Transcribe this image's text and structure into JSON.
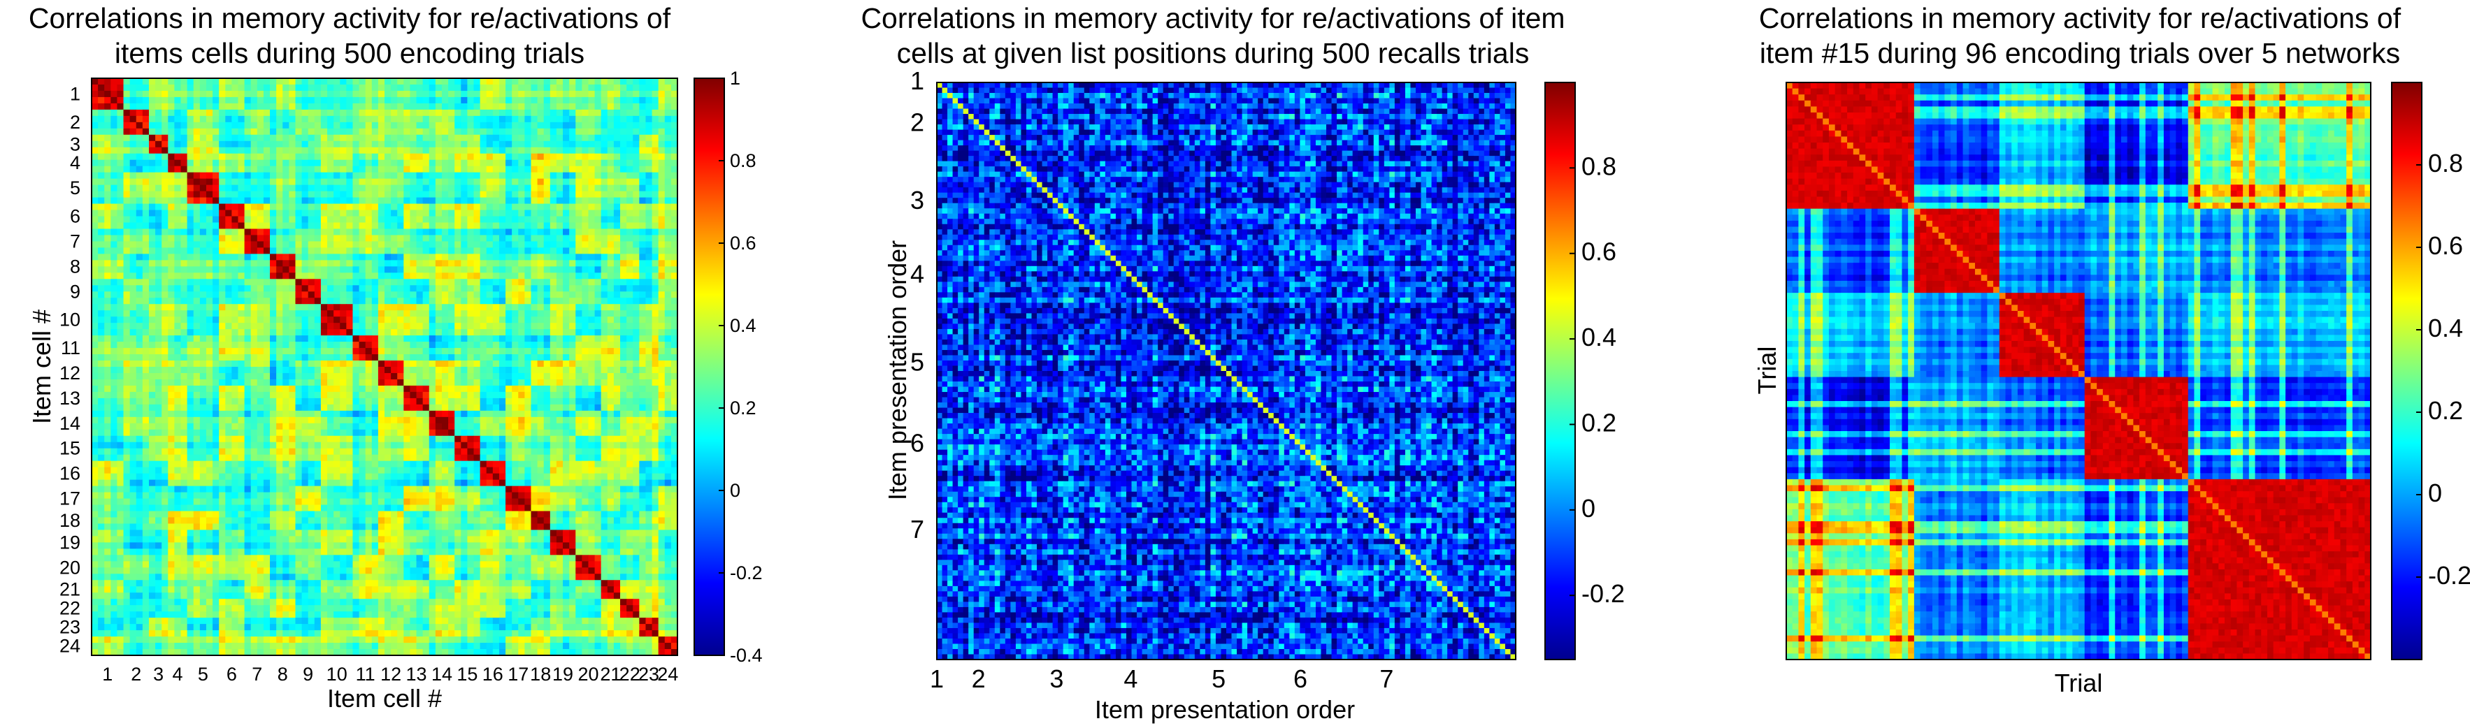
{
  "chart_data": [
    {
      "type": "heatmap",
      "title": [
        "Correlations in memory activity for re/activations of",
        "items cells during 500 encoding trials"
      ],
      "xlabel": "Item cell #",
      "ylabel": "Item cell #",
      "xticks": [
        "1",
        "2",
        "3",
        "4",
        "5",
        "6",
        "7",
        "8",
        "9",
        "10",
        "11",
        "12",
        "13",
        "14",
        "15",
        "16",
        "17",
        "18",
        "19",
        "20",
        "21",
        "22",
        "23",
        "24"
      ],
      "yticks": [
        "1",
        "2",
        "3",
        "4",
        "5",
        "6",
        "7",
        "8",
        "9",
        "10",
        "11",
        "12",
        "13",
        "14",
        "15",
        "16",
        "17",
        "18",
        "19",
        "20",
        "21",
        "22",
        "23",
        "24"
      ],
      "colorbar": {
        "min": -0.4,
        "max": 1,
        "ticks": [
          "1",
          "0.8",
          "0.6",
          "0.4",
          "0.2",
          "0",
          "-0.2",
          "-0.4"
        ]
      },
      "colormap": "jet",
      "description_values": {
        "diagonal_value": 1,
        "background_range": [
          -0.4,
          0.5
        ]
      }
    },
    {
      "type": "heatmap",
      "title": [
        "Correlations in memory activity for re/activations of item",
        "cells at given list positions during 500 recalls trials"
      ],
      "xlabel": "Item presentation order",
      "ylabel": "Item presentation order",
      "xticks": [
        "1",
        "2",
        "3",
        "4",
        "5",
        "6",
        "7"
      ],
      "yticks": [
        "1",
        "2",
        "3",
        "4",
        "5",
        "6",
        "7"
      ],
      "colorbar": {
        "min": -0.35,
        "max": 1,
        "ticks": [
          "0.8",
          "0.6",
          "0.4",
          "0.2",
          "0",
          "-0.2"
        ]
      },
      "colormap": "jet",
      "description_values": {
        "background_range": [
          -0.35,
          0.3
        ]
      }
    },
    {
      "type": "heatmap",
      "title": [
        "Correlations in memory activity for re/activations of",
        "item #15 during 96 encoding trials over 5 networks"
      ],
      "xlabel": "Trial",
      "ylabel": "Trial",
      "colorbar": {
        "min": -0.4,
        "max": 1,
        "ticks": [
          "0.8",
          "0.6",
          "0.4",
          "0.2",
          "0",
          "-0.2"
        ]
      },
      "colormap": "jet",
      "n_trials": 96,
      "n_networks": 5,
      "description_values": {
        "within_network_value": 0.95,
        "between_network_range": [
          -0.35,
          0.45
        ]
      }
    }
  ]
}
